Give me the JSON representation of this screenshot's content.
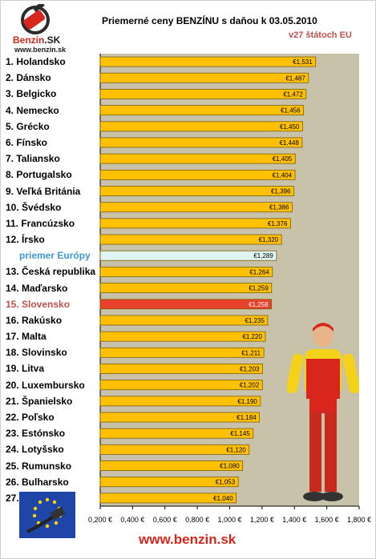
{
  "logo": {
    "brand": "Benzin",
    "brand_suffix": ".SK",
    "url": "www.benzin.sk"
  },
  "footer": {
    "url": "www.benzin.sk"
  },
  "colors": {
    "bar": "#ffc000",
    "bar_border": "#7f6000",
    "average_bar": "#dff5f3",
    "highlight_bar": "#e8412c",
    "plot_bg": "#c9c2ab",
    "title_accent": "#c0504d",
    "average_label": "#3d9ad6"
  },
  "chart_data": {
    "type": "bar",
    "orientation": "horizontal",
    "title": "Priemerné ceny BENZÍNU s daňou k 03.05.2010",
    "subtitle": "v27 štátoch EU",
    "categories": [
      "1. Holandsko",
      "2. Dánsko",
      "3. Belgicko",
      "4. Nemecko",
      "5. Grécko",
      "6. Fínsko",
      "7. Taliansko",
      "8. Portugalsko",
      "9. Veľká Británia",
      "10. Švédsko",
      "11. Francúzsko",
      "12. Írsko",
      "priemer Európy",
      "13. Česká republika",
      "14. Maďarsko",
      "15. Slovensko",
      "16. Rakúsko",
      "17. Malta",
      "18. Slovinsko",
      "19. Litva",
      "20. Luxembursko",
      "21. Španielsko",
      "22. Poľsko",
      "23. Estónsko",
      "24. Lotyšsko",
      "25. Rumunsko",
      "26. Bulharsko",
      "27. Cyprus"
    ],
    "values": [
      1.531,
      1.487,
      1.472,
      1.456,
      1.45,
      1.448,
      1.405,
      1.404,
      1.396,
      1.386,
      1.376,
      1.32,
      1.289,
      1.264,
      1.259,
      1.258,
      1.235,
      1.22,
      1.211,
      1.203,
      1.202,
      1.19,
      1.184,
      1.145,
      1.12,
      1.08,
      1.053,
      1.04
    ],
    "data_labels": [
      "€1,531",
      "€1,487",
      "€1,472",
      "€1,456",
      "€1,450",
      "€1,448",
      "€1,405",
      "€1,404",
      "€1,396",
      "€1,386",
      "€1,376",
      "€1,320",
      "€1,289",
      "€1,264",
      "€1,259",
      "€1,258",
      "€1,235",
      "€1,220",
      "€1,211",
      "€1,203",
      "€1,202",
      "€1,190",
      "€1,184",
      "€1,145",
      "€1,120",
      "€1,080",
      "€1,053",
      "€1,040"
    ],
    "average_index": 12,
    "highlight_index": 15,
    "xlim": [
      0.2,
      1.8
    ],
    "xticks": [
      "0,200 €",
      "0,400 €",
      "0,600 €",
      "0,800 €",
      "1,000 €",
      "1,200 €",
      "1,400 €",
      "1,600 €",
      "1,800 €"
    ],
    "grid": false,
    "legend": "none"
  }
}
